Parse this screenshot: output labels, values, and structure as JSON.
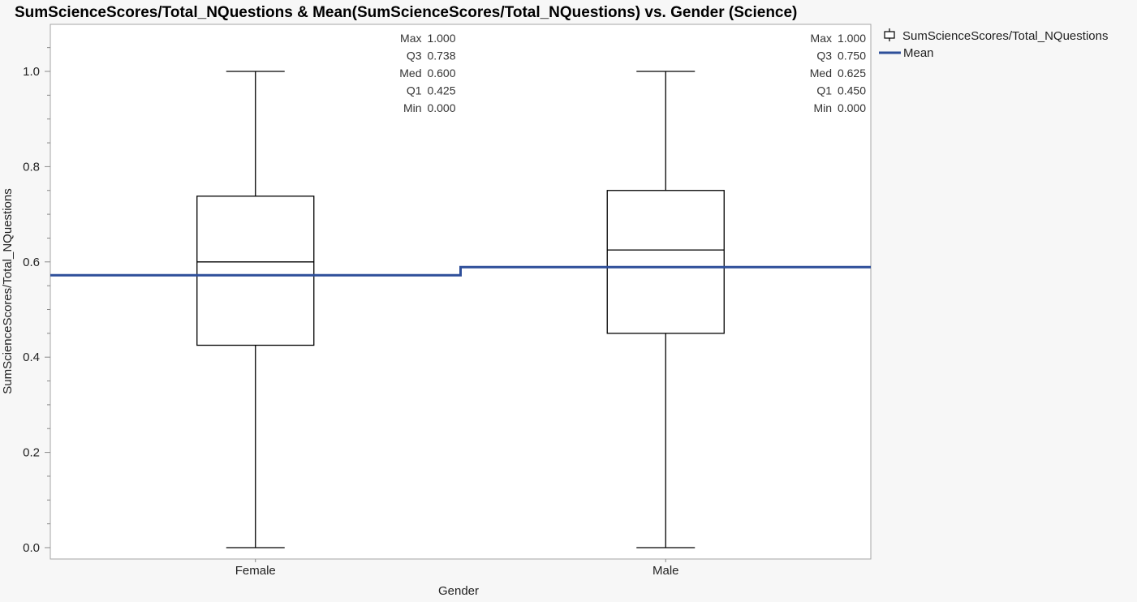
{
  "chart_data": {
    "type": "box",
    "title": "SumScienceScores/Total_NQuestions & Mean(SumScienceScores/Total_NQuestions) vs. Gender (Science)",
    "xlabel": "Gender",
    "ylabel": "SumScienceScores/Total_NQuestions",
    "ylim": [
      -0.02,
      1.1
    ],
    "yticks": [
      "0.0",
      "0.2",
      "0.4",
      "0.6",
      "0.8",
      "1.0"
    ],
    "ytick_values": [
      0,
      0.2,
      0.4,
      0.6,
      0.8,
      1.0
    ],
    "categories": [
      "Female",
      "Male"
    ],
    "boxes": [
      {
        "category": "Female",
        "stats": [
          {
            "label": "Max",
            "value": "1.000"
          },
          {
            "label": "Q3",
            "value": "0.738"
          },
          {
            "label": "Med",
            "value": "0.600"
          },
          {
            "label": "Q1",
            "value": "0.425"
          },
          {
            "label": "Min",
            "value": "0.000"
          }
        ],
        "min": 0.0,
        "q1": 0.425,
        "median": 0.6,
        "q3": 0.738,
        "max": 1.0,
        "mean": 0.572
      },
      {
        "category": "Male",
        "stats": [
          {
            "label": "Max",
            "value": "1.000"
          },
          {
            "label": "Q3",
            "value": "0.750"
          },
          {
            "label": "Med",
            "value": "0.625"
          },
          {
            "label": "Q1",
            "value": "0.450"
          },
          {
            "label": "Min",
            "value": "0.000"
          }
        ],
        "min": 0.0,
        "q1": 0.45,
        "median": 0.625,
        "q3": 0.75,
        "max": 1.0,
        "mean": 0.589
      }
    ],
    "legend": {
      "placement": "right",
      "items": [
        {
          "label": "SumScienceScores/Total_NQuestions",
          "kind": "box-icon"
        },
        {
          "label": "Mean",
          "kind": "line"
        }
      ]
    },
    "colors": {
      "mean_line": "#2e4f9a",
      "box_stroke": "#000000",
      "frame": "#a6a6a6",
      "background": "#f7f7f7",
      "plot_background": "#ffffff"
    }
  }
}
